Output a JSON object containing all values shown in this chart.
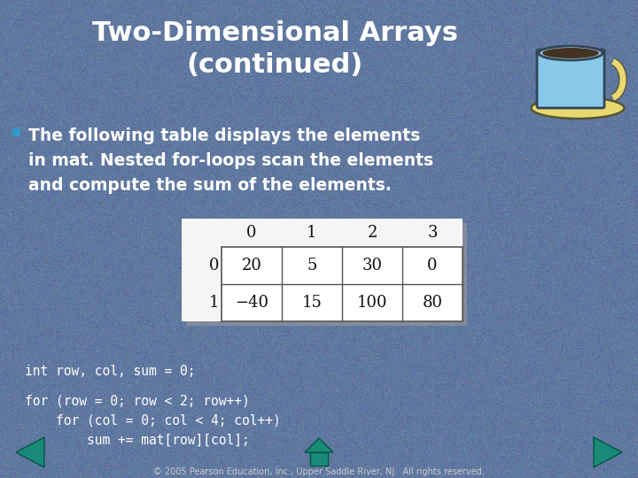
{
  "title_line1": "Two-Dimensional Arrays",
  "title_line2": "(continued)",
  "bullet_text_line1": "The following table displays the elements",
  "bullet_text_line2": "in mat. Nested for-loops scan the elements",
  "bullet_text_line3": "and compute the sum of the elements.",
  "table_col_headers": [
    "0",
    "1",
    "2",
    "3"
  ],
  "table_row_headers": [
    "0",
    "1"
  ],
  "table_data": [
    [
      20,
      5,
      30,
      0
    ],
    [
      "-40",
      15,
      100,
      80
    ]
  ],
  "code_line1": "int row, col, sum = 0;",
  "code_line2": "for (row = 0; row < 2; row++)",
  "code_line3": "    for (col = 0; col < 4; col++)",
  "code_line4": "        sum += mat[row][col];",
  "footer": "© 2005 Pearson Education, Inc., Upper Saddle River, NJ.  All rights reserved.",
  "bg_color_hex": [
    96,
    120,
    160
  ],
  "title_color": "#ffffff",
  "bullet_color": "#ffffff",
  "bullet_marker_color": "#3399cc",
  "code_color": "#ffffff",
  "footer_color": "#cccccc",
  "arrow_color": "#1a8a78"
}
